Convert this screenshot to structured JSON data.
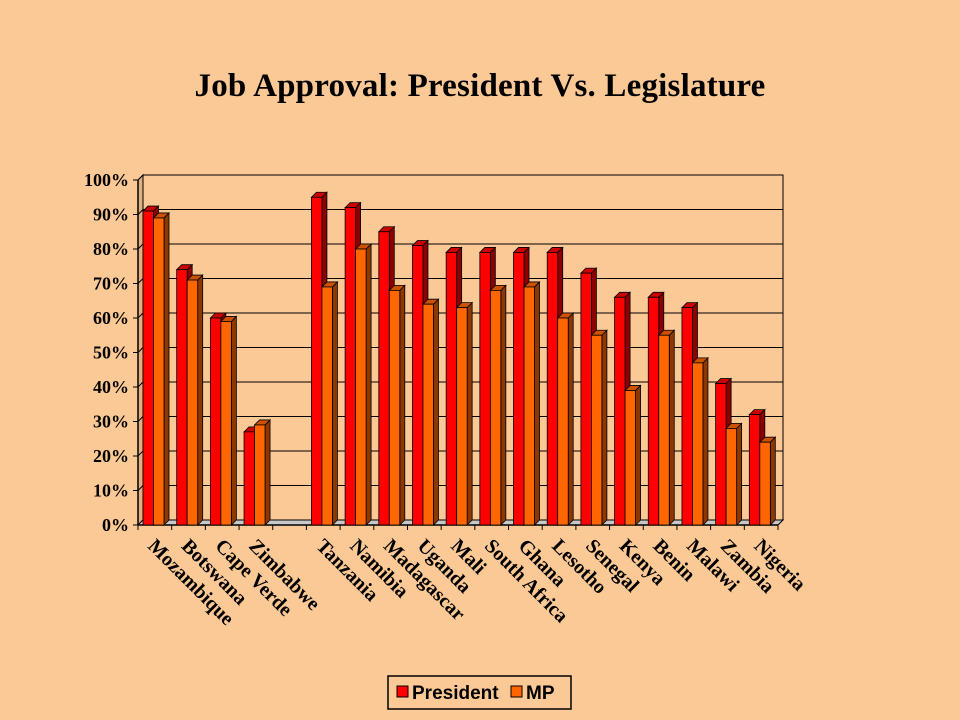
{
  "chart_data": {
    "type": "bar",
    "title": "Job Approval: President Vs. Legislature",
    "categories": [
      "Mozambique",
      "Botswana",
      "Cape Verde",
      "Zimbabwe",
      "",
      "Tanzania",
      "Namibia",
      "Madagascar",
      "Uganda",
      "Mali",
      "South Africa",
      "Ghana",
      "Lesotho",
      "Senegal",
      "Kenya",
      "Benin",
      "Malawi",
      "Zambia",
      "Nigeria"
    ],
    "series": [
      {
        "name": "President",
        "color": "#FF0000",
        "values": [
          91,
          74,
          60,
          27,
          0,
          95,
          92,
          85,
          81,
          79,
          79,
          79,
          79,
          73,
          66,
          66,
          63,
          41,
          32
        ]
      },
      {
        "name": "MP",
        "color": "#FF6600",
        "values": [
          89,
          71,
          59,
          29,
          0,
          69,
          80,
          68,
          64,
          63,
          68,
          69,
          60,
          55,
          39,
          55,
          47,
          28,
          24
        ]
      }
    ],
    "ylim": [
      0,
      100
    ],
    "yticks": [
      "0%",
      "10%",
      "20%",
      "30%",
      "40%",
      "50%",
      "60%",
      "70%",
      "80%",
      "90%",
      "100%"
    ],
    "grid": true,
    "legend": "bottom"
  }
}
